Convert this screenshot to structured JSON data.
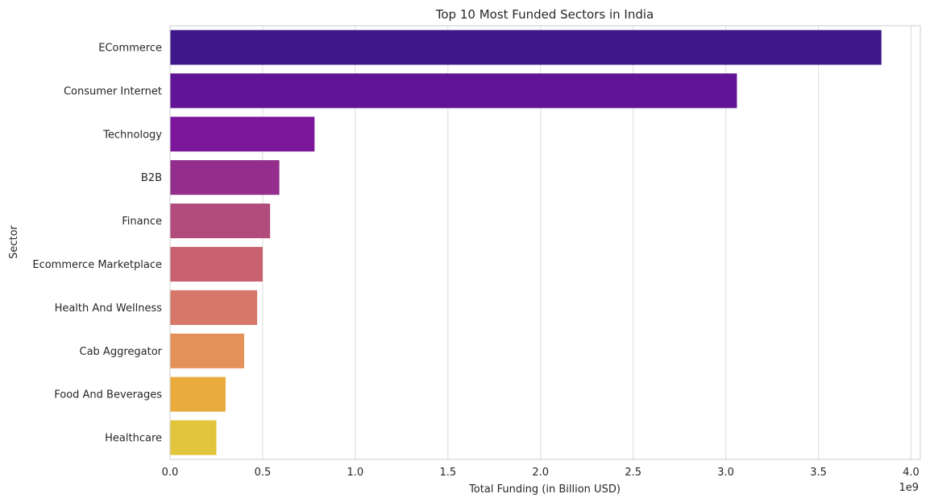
{
  "chart_data": {
    "type": "bar",
    "orientation": "horizontal",
    "title": "Top 10 Most Funded Sectors in India",
    "xlabel": "Total Funding (in Billion USD)",
    "ylabel": "Sector",
    "offset_label": "1e9",
    "xlim": [
      0,
      4.05
    ],
    "x_scale_multiplier": 1000000000,
    "xticks": [
      0.0,
      0.5,
      1.0,
      1.5,
      2.0,
      2.5,
      3.0,
      3.5,
      4.0
    ],
    "xtick_labels": [
      "0.0",
      "0.5",
      "1.0",
      "1.5",
      "2.0",
      "2.5",
      "3.0",
      "3.5",
      "4.0"
    ],
    "grid": "vertical gridlines",
    "categories": [
      "ECommerce",
      "Consumer Internet",
      "Technology",
      "B2B",
      "Finance",
      "Ecommerce Marketplace",
      "Health And Wellness",
      "Cab Aggregator",
      "Food And Beverages",
      "Healthcare"
    ],
    "values": [
      3.84,
      3.06,
      0.78,
      0.59,
      0.54,
      0.5,
      0.47,
      0.4,
      0.3,
      0.25
    ],
    "colors": [
      "#3e1888",
      "#621496",
      "#7c169b",
      "#932e8c",
      "#b24c7d",
      "#c9606d",
      "#d6776a",
      "#e39158",
      "#e9ab3e",
      "#e3c53c"
    ]
  }
}
